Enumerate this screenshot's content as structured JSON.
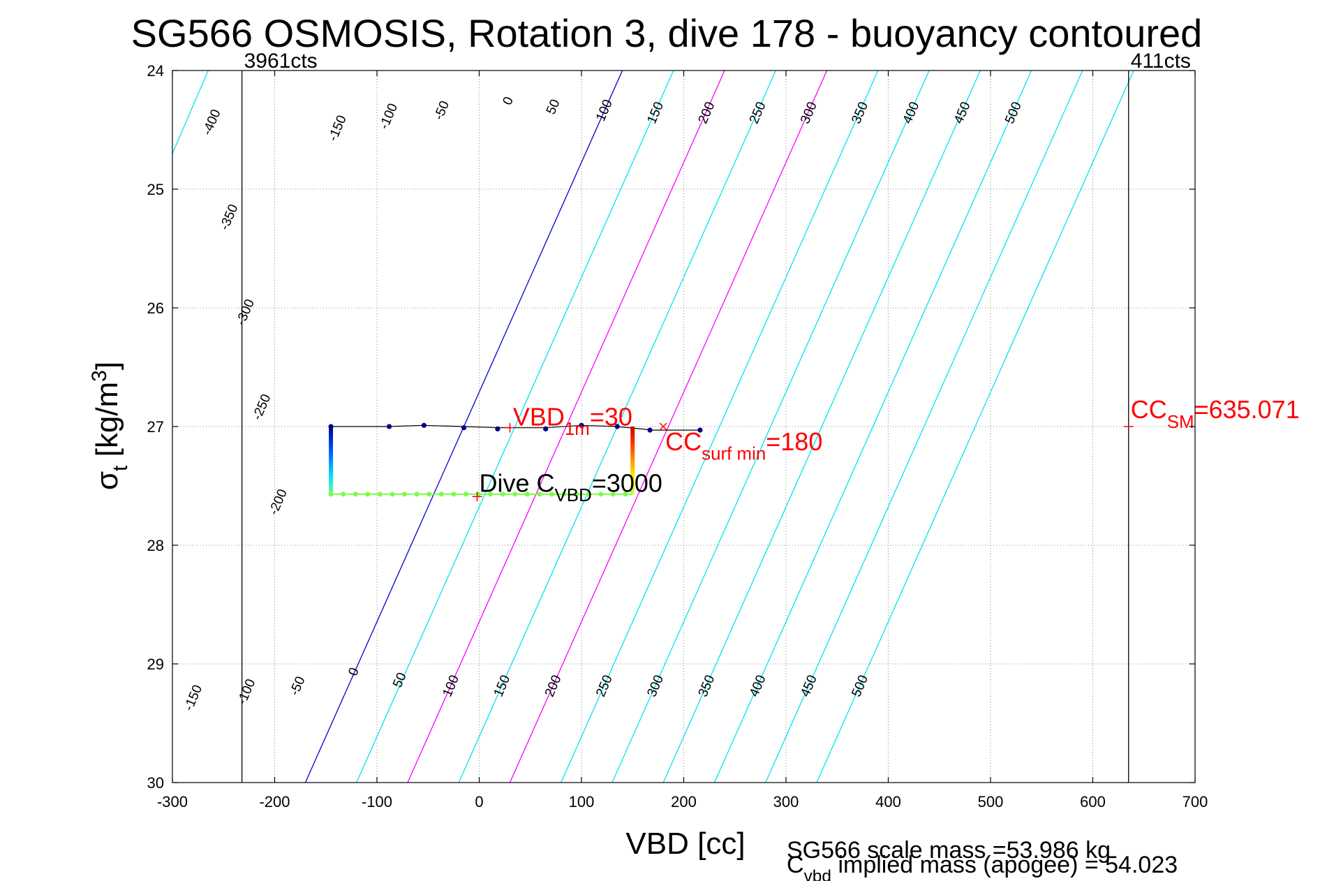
{
  "chart_data": {
    "type": "scatter",
    "title": "SG566 OSMOSIS, Rotation 3, dive 178 - buoyancy contoured",
    "xlabel": "VBD [cc]",
    "ylabel": "σ",
    "ylabel_sub": "t",
    "ylabel_unit": "[kg/m",
    "ylabel_unit_sup": "3",
    "ylabel_unit_close": "]",
    "xlim": [
      -300,
      700
    ],
    "ylim": [
      30,
      24
    ],
    "grid": true,
    "xticks": [
      -300,
      -200,
      -100,
      0,
      100,
      200,
      300,
      400,
      500,
      600,
      700
    ],
    "yticks": [
      24,
      25,
      26,
      27,
      28,
      29,
      30
    ],
    "contours": {
      "levels": [
        -400,
        -350,
        -300,
        -250,
        -200,
        -150,
        -100,
        -50,
        0,
        50,
        100,
        150,
        200,
        250,
        300,
        350,
        400,
        450,
        500
      ],
      "x_at_top": [
        -615,
        -565,
        -515,
        -465,
        -415,
        -365,
        -315,
        -265,
        140,
        190,
        240,
        290,
        340,
        390,
        440,
        490,
        540,
        590,
        640
      ],
      "x_at_bottom": [
        -915,
        -865,
        -815,
        -765,
        -715,
        -665,
        -615,
        -565,
        -170,
        -120,
        -70,
        -20,
        30,
        80,
        130,
        180,
        230,
        280,
        330
      ],
      "colors": {
        "default": "#00e5ee",
        "zero": "#0000cc",
        "highlight": "#ff00ff"
      },
      "highlight_levels": [
        100,
        200
      ],
      "left_labels": [
        {
          "text": "-400",
          "x": -258,
          "y": 24.45
        },
        {
          "text": "-350",
          "x": -241,
          "y": 25.25
        },
        {
          "text": "-300",
          "x": -225,
          "y": 26.05
        },
        {
          "text": "-250",
          "x": -209,
          "y": 26.85
        },
        {
          "text": "-200",
          "x": -193,
          "y": 27.65
        },
        {
          "text": "-150",
          "x": -276,
          "y": 29.3
        }
      ],
      "top_labels": [
        {
          "text": "-150",
          "x": -135,
          "y": 24.5
        },
        {
          "text": "-100",
          "x": -85,
          "y": 24.4
        },
        {
          "text": "-50",
          "x": -33,
          "y": 24.35
        },
        {
          "text": "0",
          "x": 32,
          "y": 24.27
        },
        {
          "text": "50",
          "x": 76,
          "y": 24.32
        },
        {
          "text": "100",
          "x": 126,
          "y": 24.35
        },
        {
          "text": "150",
          "x": 176,
          "y": 24.37
        },
        {
          "text": "200",
          "x": 226,
          "y": 24.37
        },
        {
          "text": "250",
          "x": 276,
          "y": 24.37
        },
        {
          "text": "300",
          "x": 326,
          "y": 24.37
        },
        {
          "text": "350",
          "x": 376,
          "y": 24.37
        },
        {
          "text": "400",
          "x": 426,
          "y": 24.37
        },
        {
          "text": "450",
          "x": 476,
          "y": 24.37
        },
        {
          "text": "500",
          "x": 526,
          "y": 24.37
        }
      ],
      "bottom_labels": [
        {
          "text": "-100",
          "x": -224,
          "y": 29.25
        },
        {
          "text": "-50",
          "x": -174,
          "y": 29.2
        },
        {
          "text": "0",
          "x": -119,
          "y": 29.08
        },
        {
          "text": "50",
          "x": -74,
          "y": 29.15
        },
        {
          "text": "100",
          "x": -24,
          "y": 29.2
        },
        {
          "text": "150",
          "x": 26,
          "y": 29.2
        },
        {
          "text": "200",
          "x": 76,
          "y": 29.2
        },
        {
          "text": "250",
          "x": 126,
          "y": 29.2
        },
        {
          "text": "300",
          "x": 176,
          "y": 29.2
        },
        {
          "text": "350",
          "x": 226,
          "y": 29.2
        },
        {
          "text": "400",
          "x": 276,
          "y": 29.2
        },
        {
          "text": "450",
          "x": 326,
          "y": 29.2
        },
        {
          "text": "500",
          "x": 376,
          "y": 29.2
        }
      ]
    },
    "vertical_lines": [
      {
        "x": -232,
        "label": "3961cts"
      },
      {
        "x": 635,
        "label": "411cts"
      }
    ],
    "dive_path": [
      [
        -145,
        27.0
      ],
      [
        -90,
        27.0
      ],
      [
        -55,
        26.99
      ],
      [
        -15,
        27.0
      ],
      [
        20,
        27.01
      ],
      [
        65,
        27.01
      ],
      [
        100,
        26.99
      ],
      [
        135,
        27.0
      ],
      [
        170,
        27.03
      ],
      [
        215,
        27.03
      ]
    ],
    "dive_dots": [
      [
        -145,
        27.0
      ],
      [
        -88,
        27.0
      ],
      [
        -54,
        26.99
      ],
      [
        -15,
        27.01
      ],
      [
        18,
        27.02
      ],
      [
        65,
        27.02
      ],
      [
        100,
        26.99
      ],
      [
        135,
        27.0
      ],
      [
        167,
        27.03
      ],
      [
        216,
        27.03
      ]
    ],
    "descent_segment": {
      "x": -145,
      "y_start": 27.0,
      "y_end": 27.57
    },
    "ascent_segment": {
      "x": 150,
      "y_start": 27.0,
      "y_end": 27.57
    },
    "bottom_row": {
      "y": 27.57,
      "x_start": -145,
      "x_end": 150,
      "step": 12
    },
    "bottom_row_color": "#7cfc4a",
    "markers": [
      {
        "symbol": "+",
        "x": 30,
        "y": 27.01
      },
      {
        "symbol": "+",
        "x": -2,
        "y": 27.59
      },
      {
        "symbol": "×",
        "x": 180,
        "y": 27.0
      },
      {
        "symbol": "-",
        "x": 635,
        "y": 27.0
      }
    ],
    "annotations": [
      {
        "main": "VBD",
        "sub": "1m",
        "rest": "=30",
        "x": 33,
        "y": 26.99,
        "color": "#ff0000"
      },
      {
        "main": "CC",
        "sub": "surf min",
        "rest": "=180",
        "x": 182,
        "y": 27.2,
        "color": "#ff0000"
      },
      {
        "main": "Dive C",
        "sub": "VBD",
        "rest": "=3000",
        "x": 0,
        "y": 27.55,
        "color": "#000000"
      },
      {
        "main": "CC",
        "sub": "SM",
        "rest": "=635.071",
        "x": 637,
        "y": 26.93,
        "color": "#ff0000"
      }
    ],
    "footer_lines": [
      "SG566 scale mass =53.986 kg",
      {
        "main": "C",
        "sub": "vbd",
        "rest": " implied mass (apogee) = 54.023"
      }
    ]
  }
}
